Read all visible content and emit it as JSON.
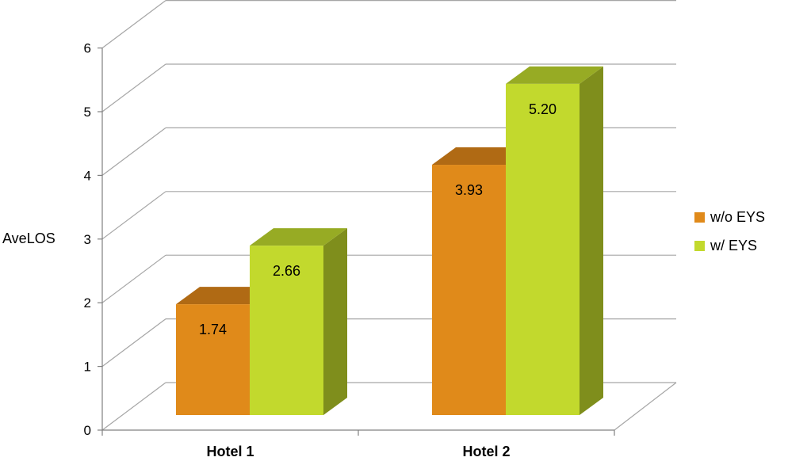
{
  "chart_data": {
    "type": "bar",
    "ylabel": "AveLOS",
    "categories": [
      "Hotel 1",
      "Hotel 2"
    ],
    "series": [
      {
        "name": "w/o EYS",
        "values": [
          1.74,
          3.93
        ],
        "labels": [
          "1.74",
          "3.93"
        ],
        "color": "#E08A1A",
        "top_color": "#B06A14",
        "side_color": "#A8620F"
      },
      {
        "name": "w/ EYS",
        "values": [
          2.66,
          5.2
        ],
        "labels": [
          "2.66",
          "5.20"
        ],
        "color": "#C2D92D",
        "top_color": "#97AB24",
        "side_color": "#7F8E1C"
      }
    ],
    "ylim": [
      0,
      6
    ],
    "yticks": [
      "0",
      "1",
      "2",
      "3",
      "4",
      "5",
      "6"
    ],
    "grid": true,
    "legend": "right",
    "style": "3d-clustered-column"
  }
}
